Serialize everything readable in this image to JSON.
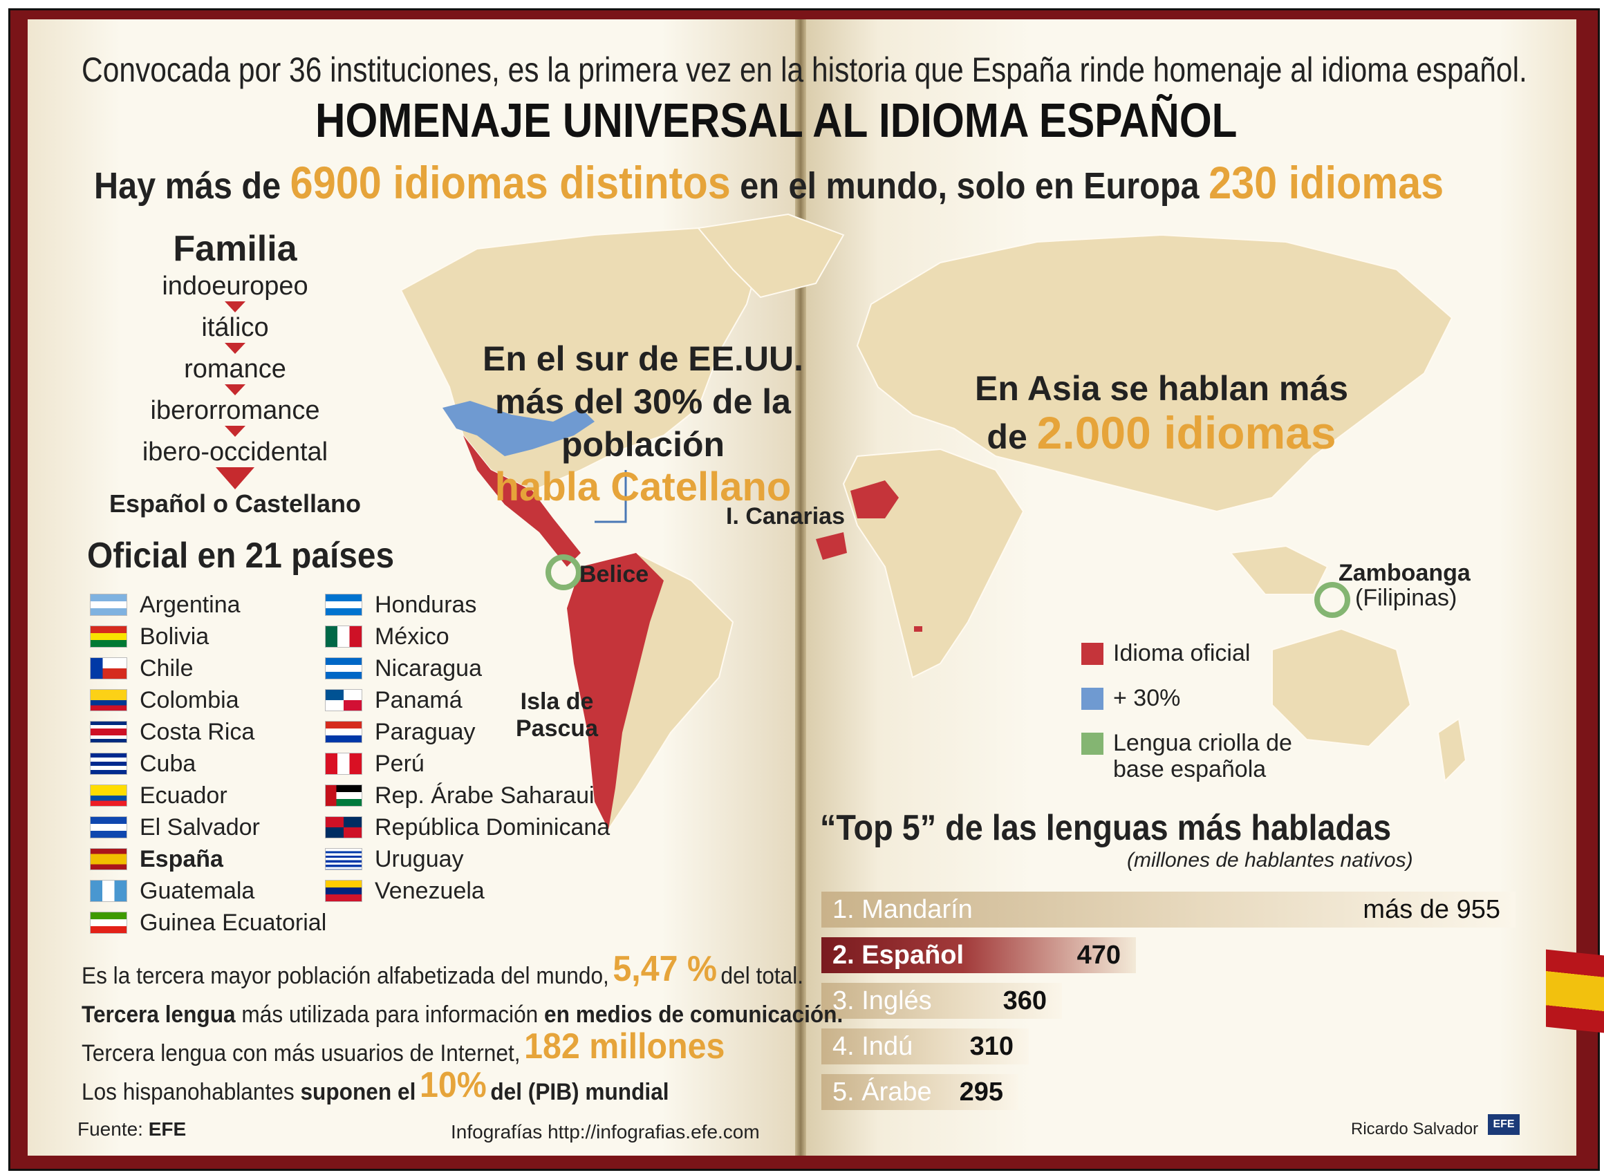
{
  "header": {
    "intro": "Convocada por 36 instituciones, es la primera vez en la historia que España rinde homenaje al idioma español.",
    "title": "HOMENAJE UNIVERSAL AL IDIOMA ESPAÑOL",
    "hay_prefix": "Hay más de",
    "hay_highlight1": "6900 idiomas distintos",
    "hay_middle": "en el mundo, solo en Europa",
    "hay_highlight2": "230 idiomas"
  },
  "familia": {
    "title": "Familia",
    "levels": [
      "indoeuropeo",
      "itálico",
      "romance",
      "iberorromance",
      "ibero-occidental"
    ],
    "final": "Español o Castellano"
  },
  "oficial": {
    "title": "Oficial en 21 países",
    "col1": [
      "Argentina",
      "Bolivia",
      "Chile",
      "Colombia",
      "Costa Rica",
      "Cuba",
      "Ecuador",
      "El Salvador",
      "España",
      "Guatemala",
      "Guinea Ecuatorial"
    ],
    "col2": [
      "Honduras",
      "México",
      "Nicaragua",
      "Panamá",
      "Paraguay",
      "Perú",
      "Rep. Árabe Saharaui",
      "República Dominicana",
      "Uruguay",
      "Venezuela"
    ]
  },
  "map": {
    "usa_line1": "En el sur de EE.UU.",
    "usa_line2": "más del 30% de la población",
    "usa_line3": "habla Catellano",
    "asia_line1": "En Asia se hablan más",
    "asia_prefix": "de",
    "asia_highlight": "2.000 idiomas",
    "canarias": "I. Canarias",
    "belice": "Belice",
    "pascua_line1": "Isla de",
    "pascua_line2": "Pascua",
    "zamboanga": "Zamboanga",
    "filipinas": "(Filipinas)"
  },
  "legend": {
    "items": [
      {
        "label": "Idioma oficial",
        "color": "#c5343a"
      },
      {
        "label": "+ 30%",
        "color": "#6f9ad1"
      },
      {
        "label": "Lengua criolla de base española",
        "color": "#84b572"
      }
    ]
  },
  "chart_data": {
    "type": "bar",
    "title": "“Top 5” de las lenguas más habladas",
    "subtitle": "(millones de hablantes nativos)",
    "categories": [
      "1. Mandarín",
      "2. Español",
      "3. Inglés",
      "4. Indú",
      "5. Árabe"
    ],
    "values": [
      955,
      470,
      360,
      310,
      295
    ],
    "value_labels": [
      "más de 955",
      "470",
      "360",
      "310",
      "295"
    ],
    "highlight": "2. Español"
  },
  "facts": {
    "f1_pre": "Es la tercera mayor población alfabetizada del mundo,",
    "f1_hl": "5,47 %",
    "f1_post": "del total.",
    "f2_b1": "Tercera lengua",
    "f2_mid": "más utilizada para información",
    "f2_b2": "en medios de comunicación.",
    "f3_pre": "Tercera lengua con más usuarios de Internet,",
    "f3_hl": "182 millones",
    "f4_pre": "Los hispanohablantes",
    "f4_b": "suponen el",
    "f4_hl": "10%",
    "f4_post": "del (PIB) mundial"
  },
  "footer": {
    "fuente_label": "Fuente:",
    "fuente_value": "EFE",
    "infografias": "Infografías http://infografias.efe.com",
    "author": "Ricardo Salvador",
    "logo": "EFE"
  }
}
